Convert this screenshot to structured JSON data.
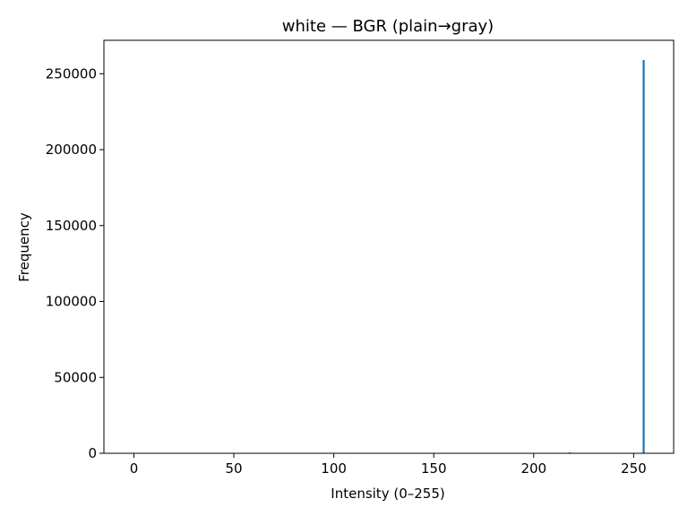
{
  "chart_data": {
    "type": "bar",
    "title": "white — BGR (plain→gray)",
    "xlabel": "Intensity (0–255)",
    "ylabel": "Frequency",
    "xlim": [
      -15,
      270
    ],
    "ylim": [
      0,
      272000
    ],
    "xticks": [
      0,
      50,
      100,
      150,
      200,
      250
    ],
    "yticks": [
      0,
      50000,
      100000,
      150000,
      200000,
      250000
    ],
    "grid": false,
    "series": [
      {
        "color": "#1f77b4",
        "points": [
          {
            "x": 218,
            "y": 500
          },
          {
            "x": 255,
            "y": 259000
          }
        ]
      }
    ]
  }
}
